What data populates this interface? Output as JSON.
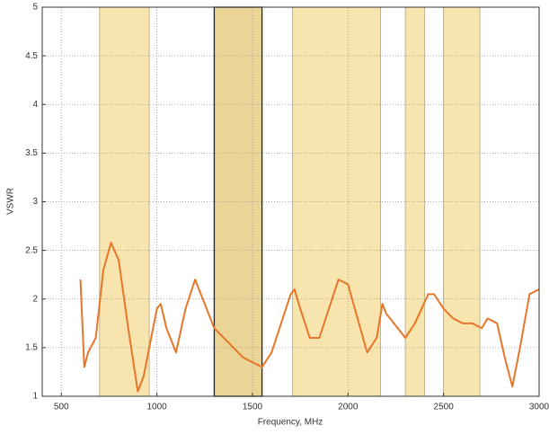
{
  "chart_data": {
    "type": "line",
    "xlabel": "Frequency, MHz",
    "ylabel": "VSWR",
    "xlim": [
      400,
      3000
    ],
    "xticks": [
      500,
      1000,
      1500,
      2000,
      2500,
      3000
    ],
    "ylim": [
      1,
      5
    ],
    "yticks": [
      1,
      1.5,
      2,
      2.5,
      3,
      3.5,
      4,
      4.5,
      5
    ],
    "grid": true,
    "bands": [
      {
        "start": 700,
        "end": 960
      },
      {
        "start": 1300,
        "end": 1550
      },
      {
        "start": 1710,
        "end": 2170
      },
      {
        "start": 2300,
        "end": 2400
      },
      {
        "start": 2500,
        "end": 2690
      }
    ],
    "band_color": "#f8e4ae",
    "highlight_band": 1,
    "highlight_color": "#ebd596",
    "x": [
      600,
      620,
      640,
      680,
      720,
      760,
      800,
      850,
      900,
      930,
      960,
      1000,
      1020,
      1050,
      1100,
      1150,
      1200,
      1250,
      1300,
      1350,
      1400,
      1450,
      1500,
      1550,
      1600,
      1650,
      1700,
      1720,
      1750,
      1800,
      1850,
      1900,
      1950,
      2000,
      2050,
      2100,
      2150,
      2180,
      2200,
      2300,
      2350,
      2420,
      2450,
      2500,
      2550,
      2600,
      2650,
      2700,
      2730,
      2780,
      2820,
      2860,
      2900,
      2950,
      3000
    ],
    "series": [
      {
        "name": "VSWR",
        "color": "#e8762a",
        "values": [
          2.2,
          1.3,
          1.45,
          1.6,
          2.3,
          2.58,
          2.4,
          1.7,
          1.05,
          1.2,
          1.5,
          1.9,
          1.95,
          1.7,
          1.45,
          1.9,
          2.2,
          1.95,
          1.7,
          1.6,
          1.5,
          1.4,
          1.35,
          1.3,
          1.45,
          1.75,
          2.05,
          2.1,
          1.9,
          1.6,
          1.6,
          1.9,
          2.2,
          2.15,
          1.8,
          1.45,
          1.6,
          1.95,
          1.85,
          1.6,
          1.75,
          2.05,
          2.05,
          1.9,
          1.8,
          1.75,
          1.75,
          1.7,
          1.8,
          1.75,
          1.4,
          1.1,
          1.5,
          2.05,
          2.1
        ]
      }
    ]
  }
}
